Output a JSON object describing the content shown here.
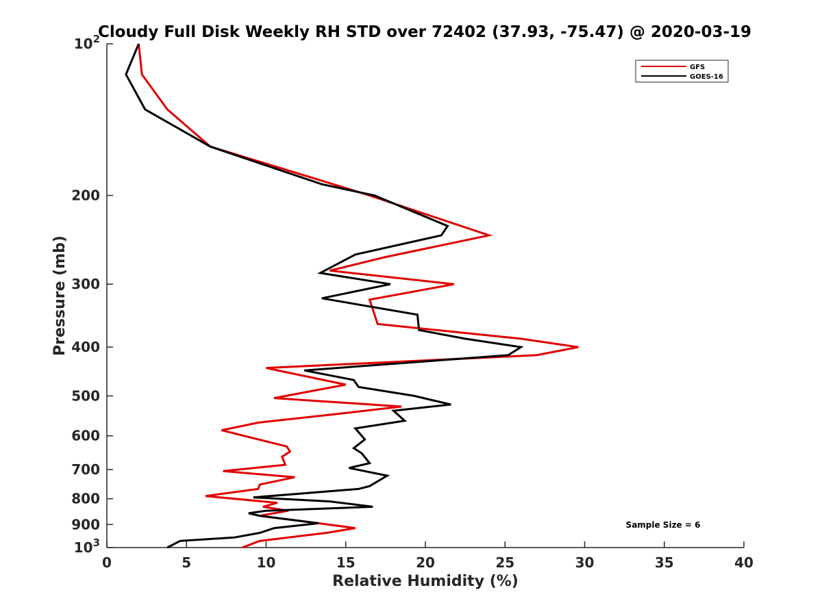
{
  "chart_data": {
    "type": "line",
    "title": "Cloudy Full Disk Weekly RH STD over 72402 (37.93, -75.47) @ 2020-03-19",
    "xlabel": "Relative Humidity (%)",
    "ylabel": "Pressure (mb)",
    "xlim": [
      0,
      40
    ],
    "ylim": [
      100,
      1000
    ],
    "y_scale": "log",
    "y_reversed": true,
    "grid": false,
    "legend_position": "top-right",
    "x_ticks": [
      "0",
      "5",
      "10",
      "15",
      "20",
      "25",
      "30",
      "35",
      "40"
    ],
    "y_ticks": [
      {
        "value": 100,
        "base": "10",
        "exp": "2"
      },
      {
        "value": 200,
        "label": "200"
      },
      {
        "value": 300,
        "label": "300"
      },
      {
        "value": 400,
        "label": "400"
      },
      {
        "value": 500,
        "label": "500"
      },
      {
        "value": 600,
        "label": "600"
      },
      {
        "value": 700,
        "label": "700"
      },
      {
        "value": 800,
        "label": "800"
      },
      {
        "value": 900,
        "label": "900"
      },
      {
        "value": 1000,
        "base": "10",
        "exp": "3"
      }
    ],
    "annotation": "Sample Size = 6",
    "series": [
      {
        "name": "GFS",
        "color": "#e00000",
        "points": [
          [
            2.0,
            100
          ],
          [
            2.2,
            115
          ],
          [
            3.8,
            135
          ],
          [
            6.5,
            160
          ],
          [
            13.5,
            187
          ],
          [
            16.5,
            200
          ],
          [
            24.0,
            240
          ],
          [
            17.5,
            265
          ],
          [
            14.0,
            282
          ],
          [
            21.8,
            300
          ],
          [
            16.5,
            322
          ],
          [
            17.0,
            360
          ],
          [
            26.0,
            385
          ],
          [
            29.6,
            400
          ],
          [
            27.0,
            415
          ],
          [
            10.0,
            440
          ],
          [
            15.0,
            475
          ],
          [
            10.5,
            505
          ],
          [
            18.5,
            525
          ],
          [
            14.0,
            545
          ],
          [
            9.5,
            565
          ],
          [
            7.2,
            585
          ],
          [
            11.3,
            630
          ],
          [
            11.5,
            645
          ],
          [
            11.0,
            660
          ],
          [
            11.2,
            685
          ],
          [
            7.3,
            705
          ],
          [
            11.8,
            725
          ],
          [
            9.6,
            750
          ],
          [
            9.5,
            765
          ],
          [
            6.2,
            790
          ],
          [
            10.7,
            815
          ],
          [
            9.8,
            830
          ],
          [
            11.4,
            845
          ],
          [
            9.6,
            865
          ],
          [
            13.3,
            895
          ],
          [
            15.6,
            915
          ],
          [
            13.8,
            935
          ],
          [
            9.6,
            970
          ],
          [
            8.5,
            1000
          ]
        ]
      },
      {
        "name": "GOES-16",
        "color": "#000000",
        "points": [
          [
            2.0,
            100
          ],
          [
            1.2,
            115
          ],
          [
            2.4,
            135
          ],
          [
            6.5,
            160
          ],
          [
            13.5,
            190
          ],
          [
            16.8,
            200
          ],
          [
            21.4,
            230
          ],
          [
            21.0,
            240
          ],
          [
            15.6,
            262
          ],
          [
            13.4,
            285
          ],
          [
            17.8,
            300
          ],
          [
            13.5,
            320
          ],
          [
            19.5,
            345
          ],
          [
            19.6,
            370
          ],
          [
            22.5,
            385
          ],
          [
            26.0,
            400
          ],
          [
            25.2,
            415
          ],
          [
            12.4,
            445
          ],
          [
            15.5,
            465
          ],
          [
            15.8,
            480
          ],
          [
            19.3,
            500
          ],
          [
            21.6,
            520
          ],
          [
            18.0,
            535
          ],
          [
            18.7,
            560
          ],
          [
            15.6,
            580
          ],
          [
            16.2,
            610
          ],
          [
            15.5,
            635
          ],
          [
            16.0,
            650
          ],
          [
            16.5,
            680
          ],
          [
            15.2,
            695
          ],
          [
            17.6,
            720
          ],
          [
            16.5,
            755
          ],
          [
            15.8,
            765
          ],
          [
            9.2,
            795
          ],
          [
            14.0,
            810
          ],
          [
            16.7,
            830
          ],
          [
            10.0,
            845
          ],
          [
            8.9,
            855
          ],
          [
            9.6,
            865
          ],
          [
            13.3,
            895
          ],
          [
            10.5,
            915
          ],
          [
            9.6,
            935
          ],
          [
            8.0,
            955
          ],
          [
            4.6,
            970
          ],
          [
            3.8,
            1000
          ]
        ]
      }
    ]
  }
}
